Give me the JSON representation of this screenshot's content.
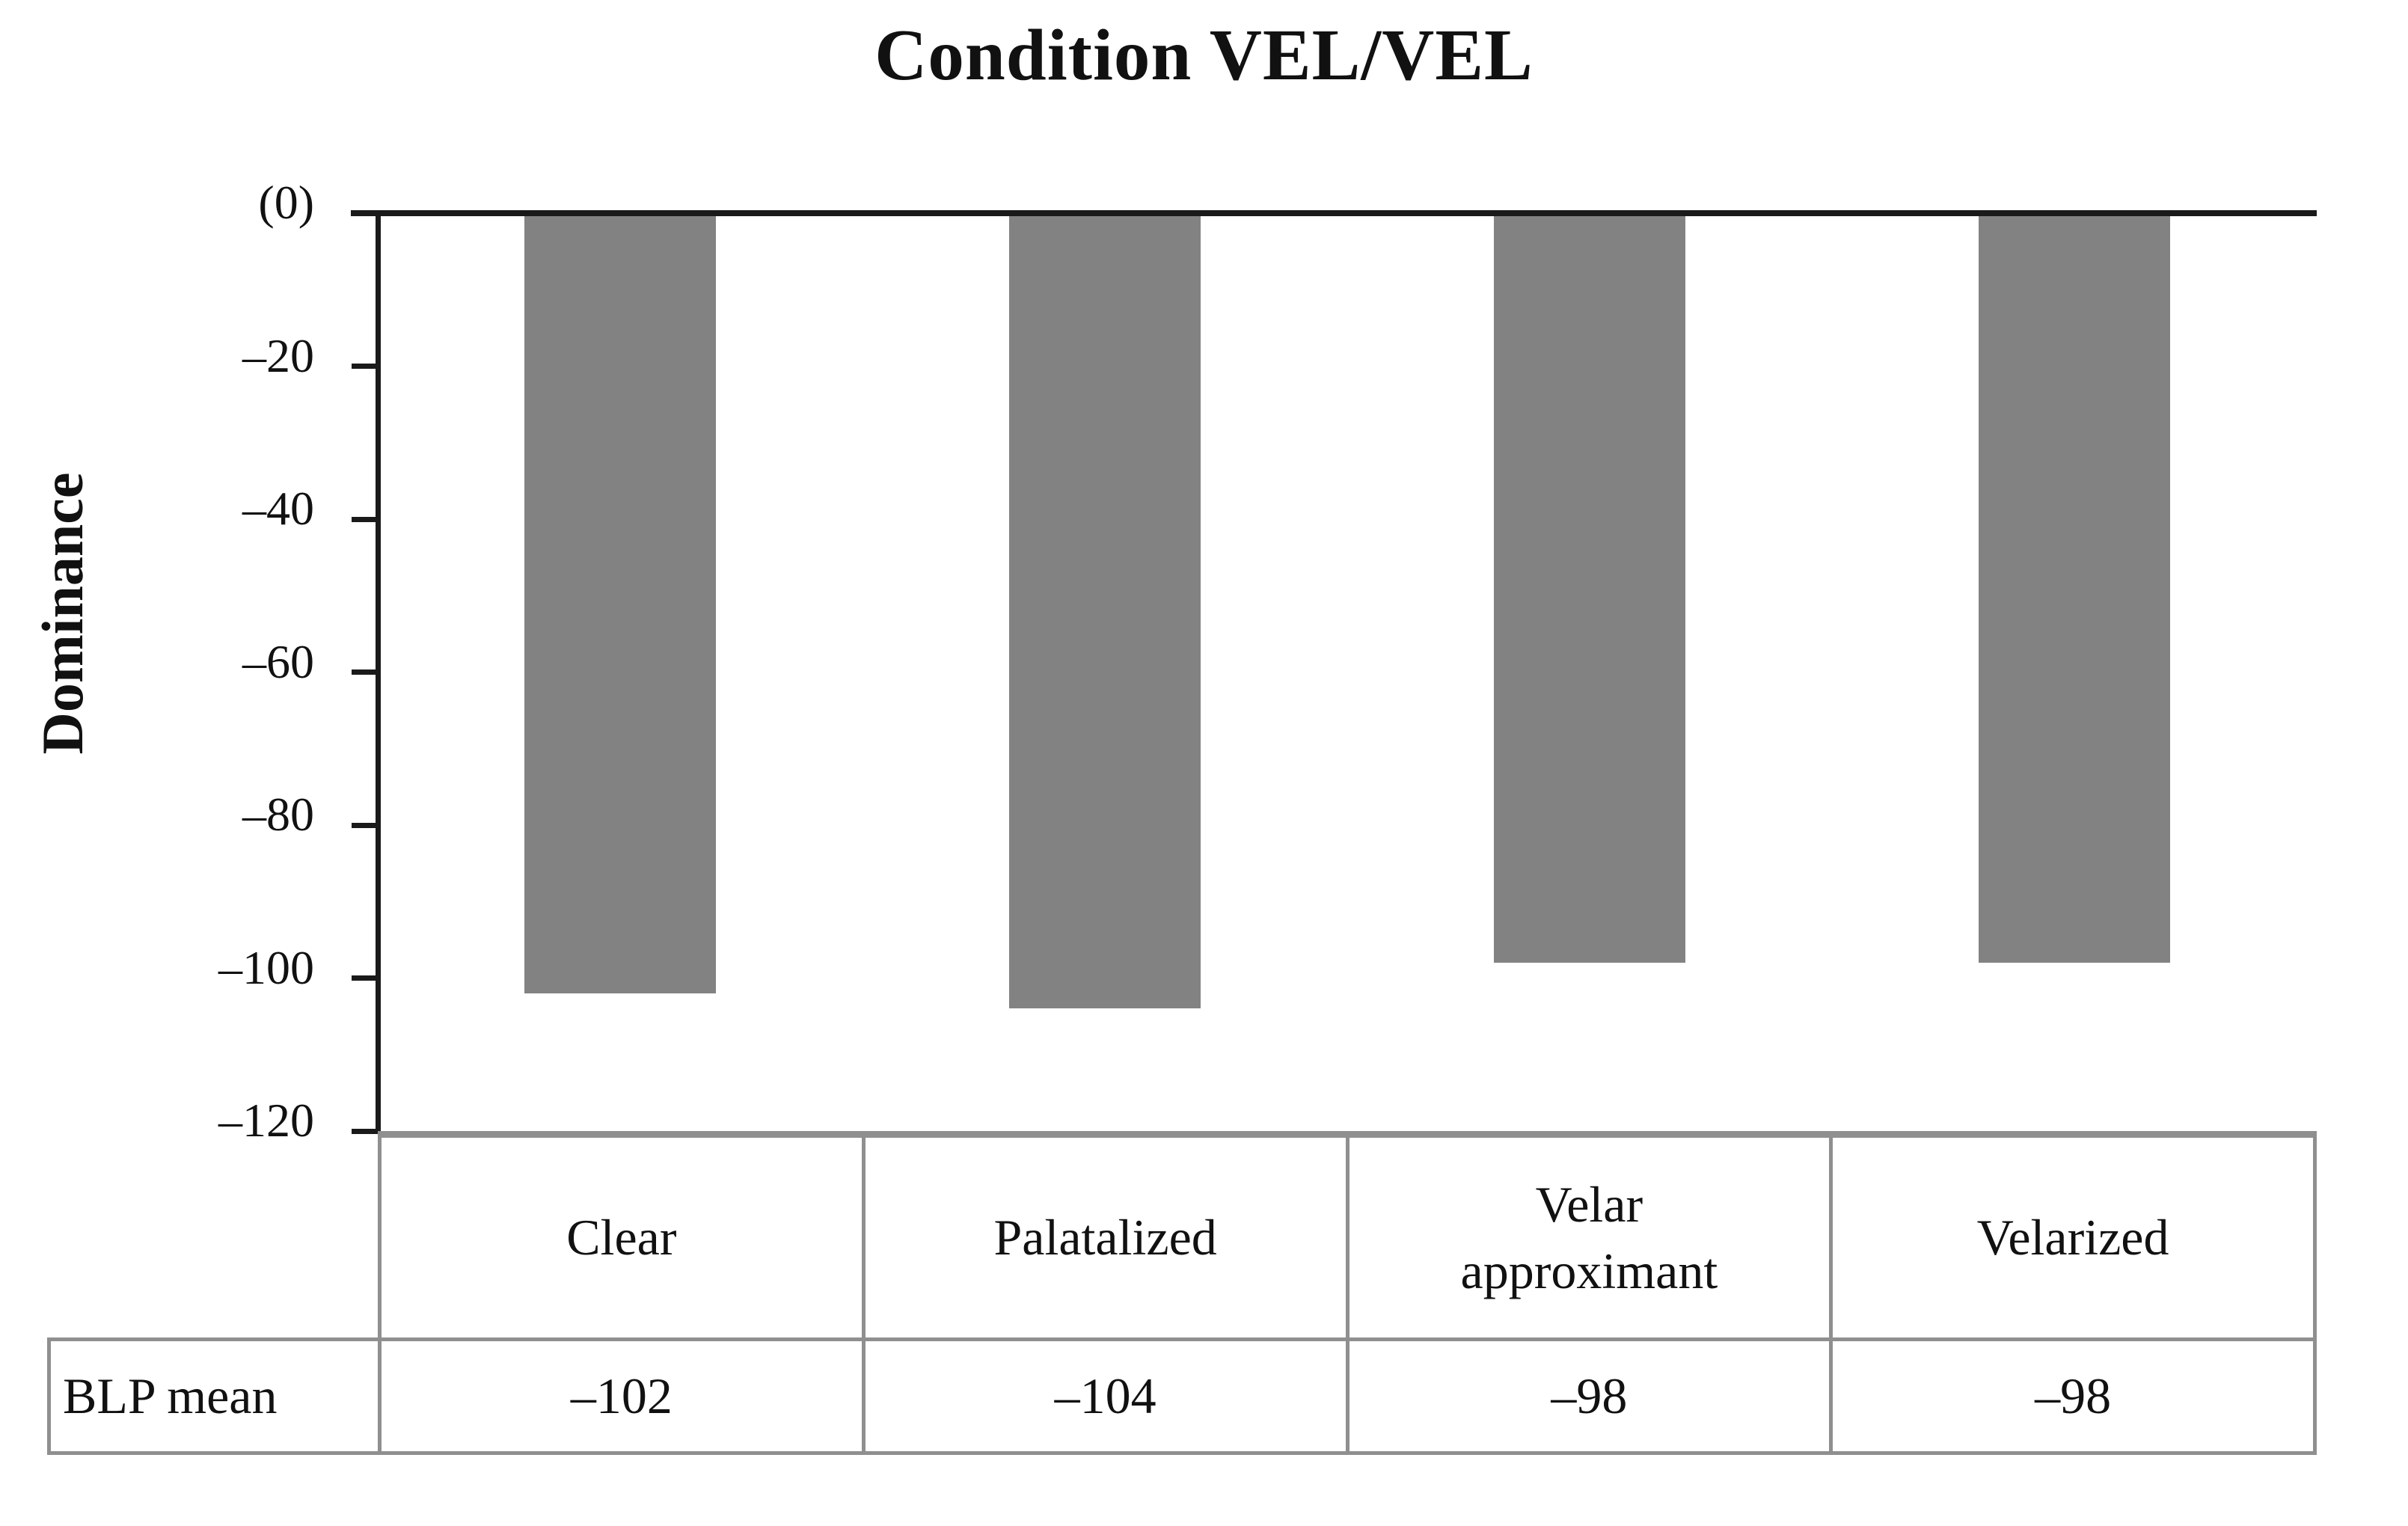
{
  "chart_data": {
    "type": "bar",
    "title": "Condition VEL/VEL",
    "ylabel": "Dominance",
    "categories": [
      "Clear",
      "Palatalized",
      "Velar approximant",
      "Velarized"
    ],
    "series": [
      {
        "name": "BLP mean",
        "values": [
          -102,
          -104,
          -98,
          -98
        ]
      }
    ],
    "values": [
      -102,
      -104,
      -98,
      -98
    ],
    "ylim": [
      -120,
      0
    ],
    "y_ticks": [
      "(0)",
      "–20",
      "–40",
      "–60",
      "–80",
      "–100",
      "–120"
    ],
    "grid": false,
    "legend_position": "none",
    "bar_color": "#828282",
    "axis_color": "#1a1a1a",
    "table_border_color": "#8f8f8f"
  },
  "table": {
    "row_label": "BLP mean",
    "display_values": [
      "–102",
      "–104",
      "–98",
      "–98"
    ]
  }
}
